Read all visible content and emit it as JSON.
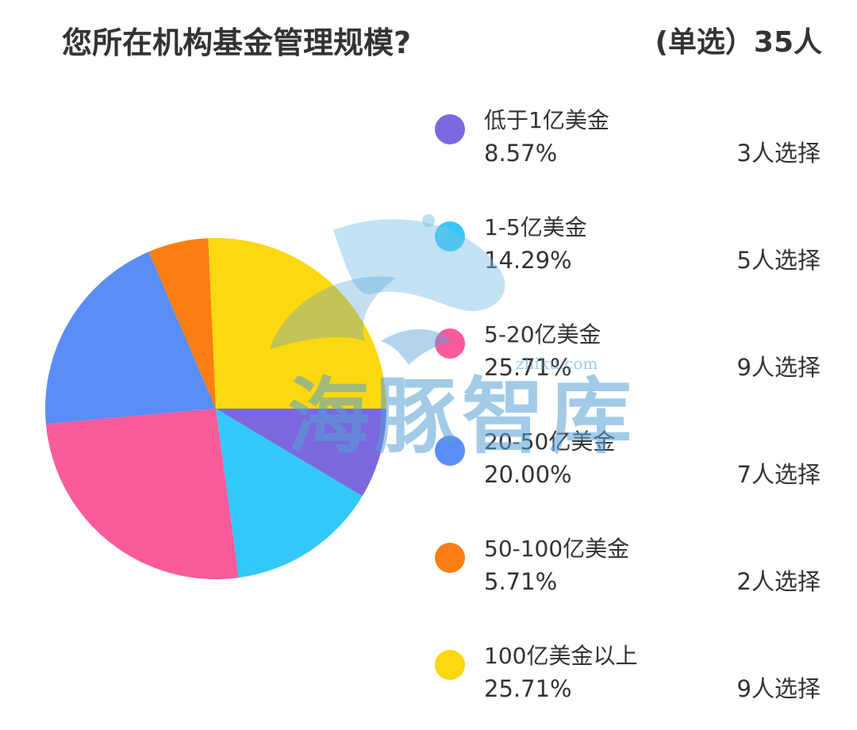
{
  "header": {
    "title": "您所在机构基金管理规模?",
    "meta": "(单选）35人"
  },
  "chart_data": {
    "type": "pie",
    "categories": [
      "低于1亿美金",
      "1-5亿美金",
      "5-20亿美金",
      "20-50亿美金",
      "50-100亿美金",
      "100亿美金以上"
    ],
    "values": [
      8.57,
      14.29,
      25.71,
      20.0,
      5.71,
      25.71
    ],
    "percent_labels": [
      "8.57%",
      "14.29%",
      "25.71%",
      "20.00%",
      "5.71%",
      "25.71%"
    ],
    "counts": [
      "3人选择",
      "5人选择",
      "9人选择",
      "7人选择",
      "2人选择",
      "9人选择"
    ],
    "colors": [
      "#7b68de",
      "#33c8f7",
      "#fb5a9b",
      "#5a8df6",
      "#fb7e12",
      "#fbd80f"
    ],
    "legend_position": "right"
  },
  "watermark": {
    "text": "海豚智库",
    "url": "zhiku.com"
  }
}
